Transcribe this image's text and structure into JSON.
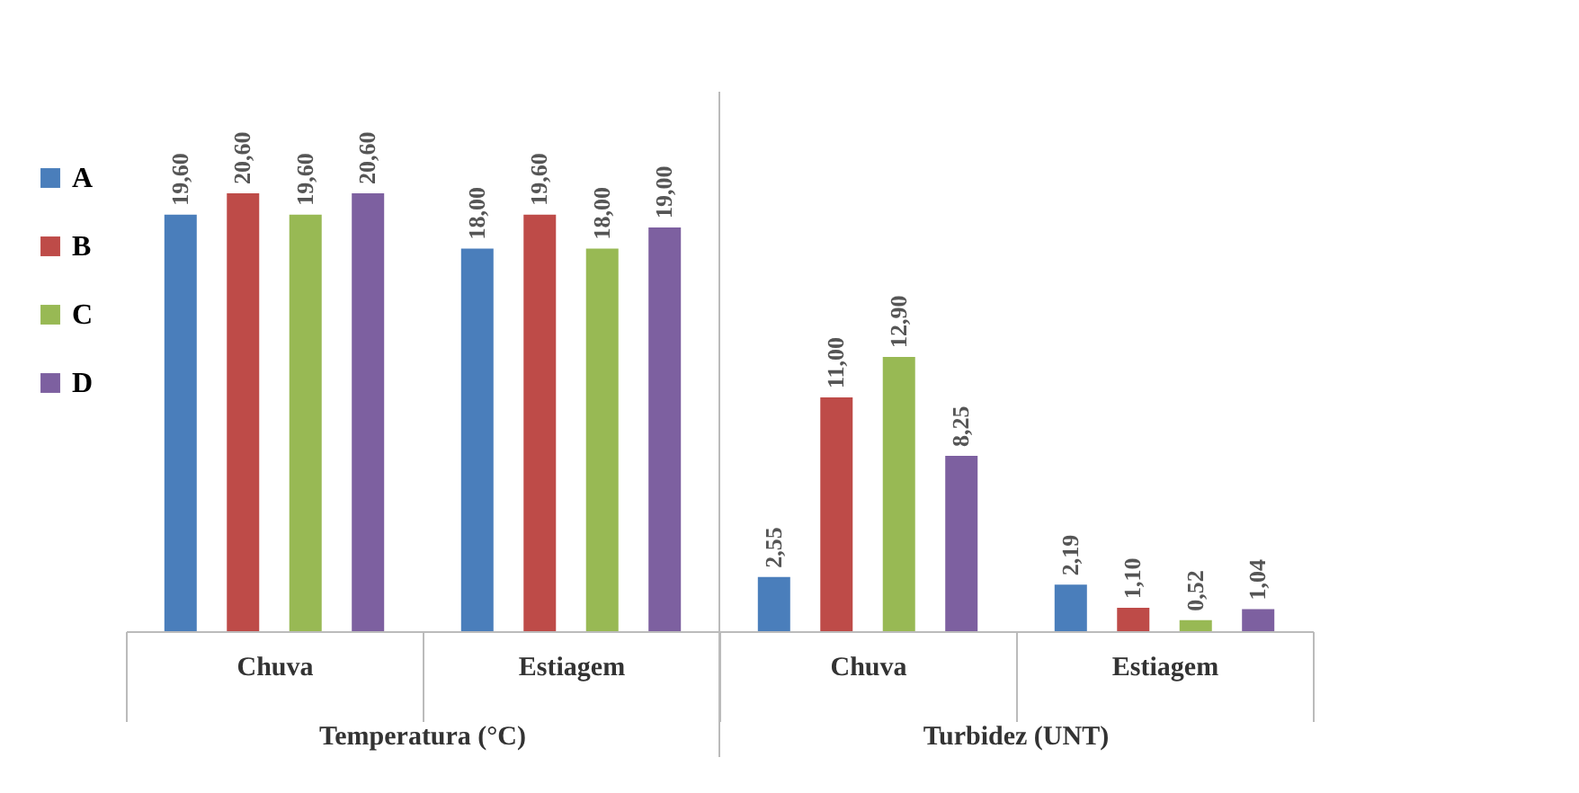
{
  "chart_data": {
    "type": "bar",
    "categories": [
      "Chuva",
      "Estiagem",
      "Chuva",
      "Estiagem"
    ],
    "annotations": [
      "Temperatura (°C)",
      "Turbidez (UNT)"
    ],
    "series": [
      {
        "name": "A",
        "color": "#4a7ebb",
        "values": [
          19.6,
          18.0,
          2.55,
          2.19
        ],
        "value_labels": [
          "19,60",
          "18,00",
          "2,55",
          "2,19"
        ]
      },
      {
        "name": "B",
        "color": "#be4b48",
        "values": [
          20.6,
          19.6,
          11.0,
          1.1
        ],
        "value_labels": [
          "20,60",
          "19,60",
          "11,00",
          "1,10"
        ]
      },
      {
        "name": "C",
        "color": "#98b954",
        "values": [
          19.6,
          18.0,
          12.9,
          0.52
        ],
        "value_labels": [
          "19,60",
          "18,00",
          "12,90",
          "0,52"
        ]
      },
      {
        "name": "D",
        "color": "#7d60a0",
        "values": [
          20.6,
          19.0,
          8.25,
          1.04
        ],
        "value_labels": [
          "20,60",
          "19,00",
          "8,25",
          "1,04"
        ]
      }
    ],
    "legend": "left"
  }
}
